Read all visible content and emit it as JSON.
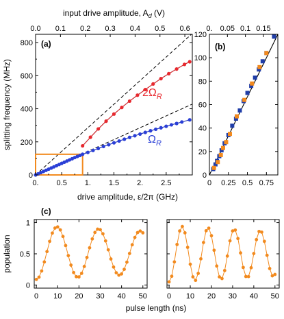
{
  "colors": {
    "red": "#e8282e",
    "blue": "#2a3fd6",
    "orange": "#f28a1e",
    "navy": "#1f3da8",
    "black": "#000000"
  },
  "chart_data": [
    {
      "panel": "(a)",
      "type": "line",
      "xlabel": "drive amplitude, ε/2π (GHz)",
      "ylabel": "splitting frequency (MHz)",
      "top_xlabel": "input drive amplitude, A",
      "top_xlabel_sub": "d",
      "top_xlabel_unit": " (V)",
      "xlim": [
        0,
        3.0
      ],
      "ylim": [
        0,
        850
      ],
      "xticks": [
        0,
        0.5,
        1,
        1.5,
        2,
        2.5
      ],
      "xtick_labels": [
        "0.",
        "0.5",
        "1.",
        "1.5",
        "2.",
        "2.5"
      ],
      "yticks": [
        0,
        200,
        400,
        600,
        800
      ],
      "ytick_labels": [
        "0",
        "200",
        "400",
        "600",
        "800"
      ],
      "top_xlim": [
        0,
        0.63
      ],
      "top_xticks": [
        0,
        0.1,
        0.2,
        0.3,
        0.4,
        0.5,
        0.6
      ],
      "top_xtick_labels": [
        "0.0",
        "0.1",
        "0.2",
        "0.3",
        "0.4",
        "0.5",
        "0.6"
      ],
      "series": [
        {
          "name": "2ΩR",
          "label_main": "2Ω",
          "label_sub": "R",
          "color": "red",
          "x": [
            0.9,
            1.05,
            1.2,
            1.35,
            1.5,
            1.65,
            1.8,
            1.95,
            2.1,
            2.25,
            2.4,
            2.55,
            2.7,
            2.85,
            2.95
          ],
          "y": [
            176,
            228,
            278,
            325,
            368,
            408,
            446,
            482,
            516,
            550,
            582,
            612,
            640,
            668,
            684
          ]
        },
        {
          "name": "ΩR",
          "label_main": "Ω",
          "label_sub": "R",
          "color": "blue",
          "x": [
            0.0,
            0.05,
            0.1,
            0.15,
            0.2,
            0.25,
            0.3,
            0.35,
            0.4,
            0.45,
            0.5,
            0.55,
            0.6,
            0.65,
            0.7,
            0.75,
            0.8,
            0.85,
            0.9,
            1.0,
            1.1,
            1.2,
            1.3,
            1.4,
            1.5,
            1.6,
            1.7,
            1.8,
            1.9,
            2.0,
            2.1,
            2.2,
            2.3,
            2.4,
            2.5,
            2.6,
            2.7,
            2.8,
            2.95
          ],
          "y": [
            0,
            7,
            14,
            21,
            28,
            35,
            42,
            49,
            56,
            63,
            70,
            77,
            84,
            91,
            98,
            105,
            112,
            118,
            125,
            136,
            148,
            160,
            172,
            183,
            194,
            205,
            216,
            227,
            237,
            247,
            257,
            267,
            276,
            285,
            294,
            303,
            311,
            320,
            333
          ]
        }
      ],
      "lines": {
        "dashed_2x": {
          "x": [
            0,
            3.0
          ],
          "y": [
            0,
            855
          ]
        },
        "dashed_1x": {
          "x": [
            0,
            3.0
          ],
          "y": [
            0,
            428
          ]
        },
        "solid_2fit": {
          "x": [
            0.0,
            0.5,
            0.9,
            1.2,
            1.5,
            1.8,
            2.1,
            2.4,
            2.7,
            2.95
          ],
          "y": [
            0,
            130,
            176,
            278,
            368,
            446,
            516,
            582,
            640,
            684
          ]
        }
      },
      "inset_box": {
        "x": [
          0,
          0.9
        ],
        "y": [
          0,
          125
        ],
        "color": "orange"
      }
    },
    {
      "panel": "(b)",
      "type": "scatter",
      "xlim": [
        0,
        0.9
      ],
      "ylim": [
        0,
        120
      ],
      "xticks": [
        0,
        0.25,
        0.5,
        0.75
      ],
      "xtick_labels": [
        "0",
        "0.25",
        "0.5",
        "0.75"
      ],
      "yticks": [
        0,
        20,
        40,
        60,
        80,
        100,
        120
      ],
      "ytick_labels": [
        "0",
        "20",
        "40",
        "60",
        "80",
        "100",
        "120"
      ],
      "top_xlim": [
        0,
        0.19
      ],
      "top_xticks": [
        0,
        0.05,
        0.1,
        0.15
      ],
      "top_xtick_labels": [
        "0.",
        "0.05",
        "0.1",
        "0.15"
      ],
      "blue_squares": {
        "x": [
          0.05,
          0.08,
          0.1,
          0.13,
          0.16,
          0.2,
          0.25,
          0.3,
          0.35,
          0.4,
          0.45,
          0.5,
          0.55,
          0.6,
          0.65,
          0.7,
          0.75,
          0.85
        ],
        "y": [
          5,
          9,
          12,
          16,
          21,
          27,
          34,
          42,
          48,
          55,
          63,
          70,
          76,
          83,
          90,
          97,
          104,
          118
        ]
      },
      "orange_squares": {
        "x": [
          0.06,
          0.11,
          0.15,
          0.18,
          0.22,
          0.27,
          0.36,
          0.46,
          0.56,
          0.66,
          0.75
        ],
        "y": [
          6,
          11,
          17,
          23,
          28,
          35,
          50,
          64,
          78,
          92,
          104
        ]
      },
      "lines": {
        "dashed": {
          "x": [
            0,
            0.9
          ],
          "y": [
            0,
            126
          ]
        },
        "solid": {
          "x": [
            0,
            0.9
          ],
          "y": [
            0,
            122
          ]
        }
      }
    },
    {
      "panel": "(c)",
      "type": "line",
      "xlabel": "pulse length (ns)",
      "ylabel": "population",
      "xlim": [
        -1,
        52
      ],
      "ylim": [
        -0.05,
        1.05
      ],
      "xticks": [
        0,
        10,
        20,
        30,
        40,
        50
      ],
      "xtick_labels": [
        "0",
        "10",
        "20",
        "30",
        "40",
        "50"
      ],
      "yticks": [
        0,
        0.5,
        1
      ],
      "ytick_labels": [
        "0",
        "0.5",
        "1"
      ],
      "series": [
        {
          "name": "left",
          "color": "orange",
          "period": 19.5,
          "amp": 0.43,
          "offset": 0.52,
          "phase": 0.8,
          "t_start": 0,
          "t_end": 50,
          "dt": 1.25
        },
        {
          "name": "right",
          "color": "orange",
          "period": 12.3,
          "amp": 0.45,
          "offset": 0.5,
          "phase": 1.0,
          "t_start": 0,
          "t_end": 50,
          "dt": 1.25
        }
      ]
    }
  ]
}
